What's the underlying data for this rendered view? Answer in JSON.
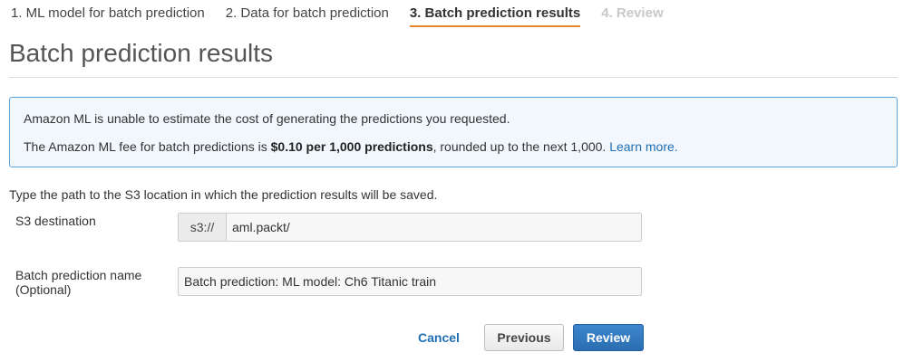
{
  "wizard": {
    "steps": [
      {
        "label": "1. ML model for batch prediction",
        "state": "default"
      },
      {
        "label": "2. Data for batch prediction",
        "state": "default"
      },
      {
        "label": "3. Batch prediction results",
        "state": "active"
      },
      {
        "label": "4. Review",
        "state": "disabled"
      }
    ]
  },
  "page": {
    "title": "Batch prediction results"
  },
  "info": {
    "line1": "Amazon ML is unable to estimate the cost of generating the predictions you requested.",
    "line2_prefix": "The Amazon ML fee for batch predictions is ",
    "line2_bold": "$0.10 per 1,000 predictions",
    "line2_suffix": ", rounded up to the next 1,000. ",
    "learn_more": "Learn more."
  },
  "form": {
    "instruction": "Type the path to the S3 location in which the prediction results will be saved.",
    "s3_label": "S3 destination",
    "s3_prefix": "s3://",
    "s3_value": "aml.packt/",
    "name_label_line1": "Batch prediction name",
    "name_label_line2": "(Optional)",
    "name_value": "Batch prediction: ML model: Ch6 Titanic train"
  },
  "actions": {
    "cancel": "Cancel",
    "previous": "Previous",
    "review": "Review"
  },
  "colors": {
    "active_step_underline": "#e7872b",
    "info_border": "#5fa3db",
    "info_background": "#f1f7fd",
    "link": "#1f6eb3",
    "primary_button": "#2b6db0"
  }
}
